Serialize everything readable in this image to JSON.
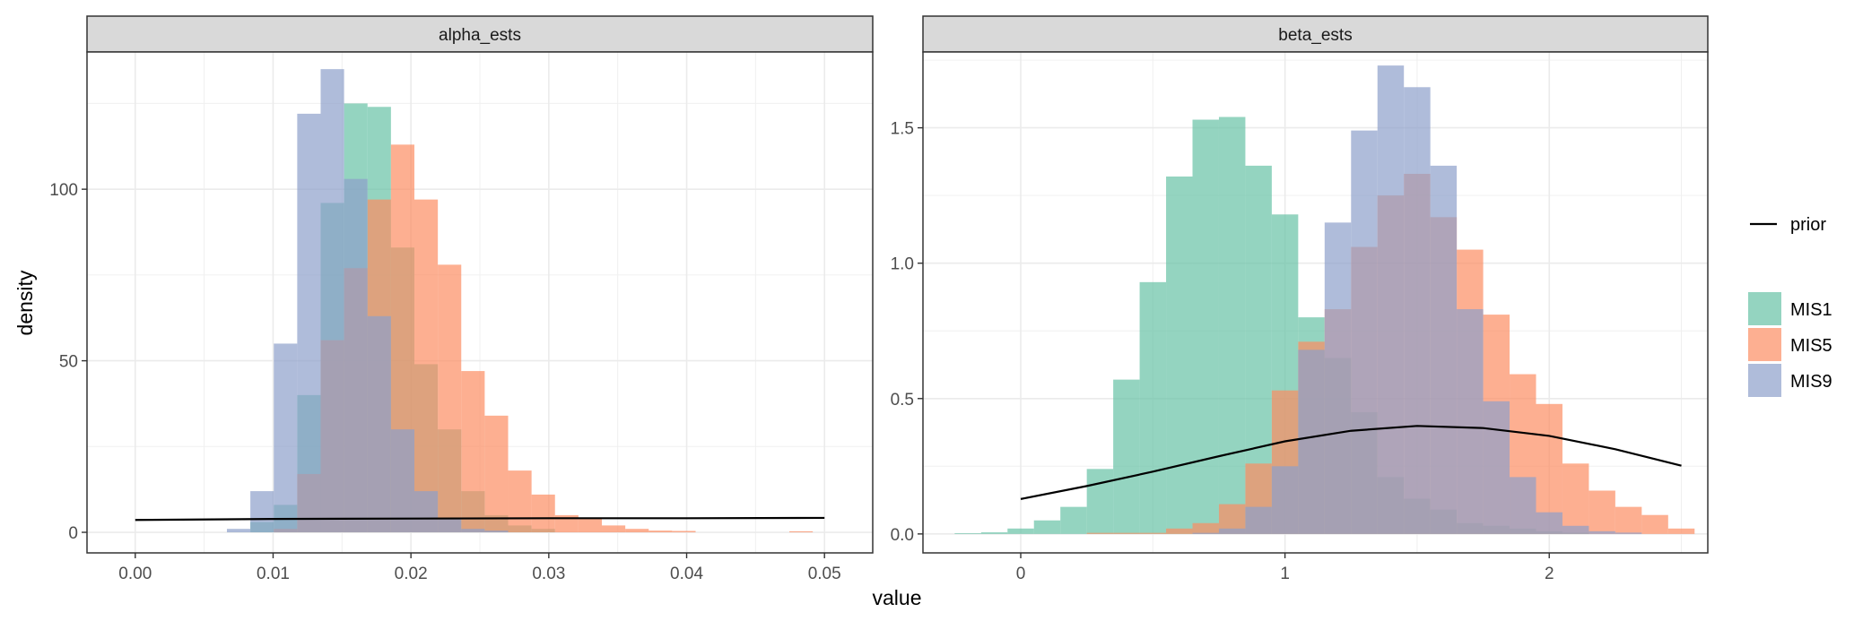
{
  "chart_data": {
    "type": "histogram",
    "xlabel": "value",
    "ylabel": "density",
    "legend": {
      "position": "right",
      "line_label": "prior",
      "fill_series": [
        "MIS1",
        "MIS5",
        "MIS9"
      ]
    },
    "colors": {
      "MIS1": "#66c2a5",
      "MIS5": "#fc8d62",
      "MIS9": "#8da0cb",
      "prior": "#000000"
    },
    "panels": [
      {
        "name": "alpha_ests",
        "xlim": [
          -0.0035,
          0.0535
        ],
        "ylim": [
          -6,
          140
        ],
        "xticks": [
          0.0,
          0.01,
          0.02,
          0.03,
          0.04,
          0.05
        ],
        "xtick_labels": [
          "0.00",
          "0.01",
          "0.02",
          "0.03",
          "0.04",
          "0.05"
        ],
        "yticks": [
          0,
          50,
          100
        ],
        "ytick_labels": [
          "0",
          "50",
          "100"
        ],
        "bin_width": 0.0017,
        "series": [
          {
            "name": "MIS1",
            "bins": [
              [
                0.0092,
                3
              ],
              [
                0.0109,
                8
              ],
              [
                0.0126,
                40
              ],
              [
                0.0143,
                96
              ],
              [
                0.016,
                125
              ],
              [
                0.0177,
                124
              ],
              [
                0.0194,
                83
              ],
              [
                0.0211,
                49
              ],
              [
                0.0228,
                30
              ],
              [
                0.0245,
                12
              ],
              [
                0.0262,
                5
              ],
              [
                0.0279,
                2
              ],
              [
                0.0296,
                1
              ]
            ]
          },
          {
            "name": "MIS5",
            "bins": [
              [
                0.0109,
                1
              ],
              [
                0.0126,
                17
              ],
              [
                0.0143,
                56
              ],
              [
                0.016,
                77
              ],
              [
                0.0177,
                97
              ],
              [
                0.0194,
                113
              ],
              [
                0.0211,
                97
              ],
              [
                0.0228,
                78
              ],
              [
                0.0245,
                47
              ],
              [
                0.0262,
                34
              ],
              [
                0.0279,
                18
              ],
              [
                0.0296,
                11
              ],
              [
                0.0313,
                5
              ],
              [
                0.033,
                4
              ],
              [
                0.0347,
                2
              ],
              [
                0.0364,
                1
              ],
              [
                0.0381,
                0.5
              ],
              [
                0.0398,
                0.4
              ],
              [
                0.0483,
                0.3
              ]
            ]
          },
          {
            "name": "MIS9",
            "bins": [
              [
                0.0075,
                1
              ],
              [
                0.0092,
                12
              ],
              [
                0.0109,
                55
              ],
              [
                0.0126,
                122
              ],
              [
                0.0143,
                135
              ],
              [
                0.016,
                103
              ],
              [
                0.0177,
                63
              ],
              [
                0.0194,
                30
              ],
              [
                0.0211,
                12
              ],
              [
                0.0228,
                4
              ],
              [
                0.0245,
                1
              ],
              [
                0.0262,
                0.5
              ]
            ]
          }
        ],
        "prior": {
          "x": [
            0.0,
            0.01,
            0.02,
            0.03,
            0.04,
            0.05
          ],
          "y": [
            3.6,
            3.9,
            4.0,
            4.1,
            4.1,
            4.2
          ]
        }
      },
      {
        "name": "beta_ests",
        "xlim": [
          -0.37,
          2.6
        ],
        "ylim": [
          -0.07,
          1.78
        ],
        "xticks": [
          0,
          1,
          2
        ],
        "xtick_labels": [
          "0",
          "1",
          "2"
        ],
        "yticks": [
          0.0,
          0.5,
          1.0,
          1.5
        ],
        "ytick_labels": [
          "0.0",
          "0.5",
          "1.0",
          "1.5"
        ],
        "bin_width": 0.1,
        "series": [
          {
            "name": "MIS1",
            "bins": [
              [
                -0.2,
                0.003
              ],
              [
                -0.1,
                0.006
              ],
              [
                0.0,
                0.02
              ],
              [
                0.1,
                0.05
              ],
              [
                0.2,
                0.1
              ],
              [
                0.3,
                0.24
              ],
              [
                0.4,
                0.57
              ],
              [
                0.5,
                0.93
              ],
              [
                0.6,
                1.32
              ],
              [
                0.7,
                1.53
              ],
              [
                0.8,
                1.54
              ],
              [
                0.9,
                1.36
              ],
              [
                1.0,
                1.18
              ],
              [
                1.1,
                0.8
              ],
              [
                1.2,
                0.65
              ],
              [
                1.3,
                0.45
              ],
              [
                1.4,
                0.21
              ],
              [
                1.5,
                0.13
              ],
              [
                1.6,
                0.09
              ],
              [
                1.7,
                0.04
              ],
              [
                1.8,
                0.03
              ],
              [
                1.9,
                0.02
              ],
              [
                2.0,
                0.01
              ],
              [
                2.1,
                0.005
              ]
            ]
          },
          {
            "name": "MIS5",
            "bins": [
              [
                0.3,
                0.004
              ],
              [
                0.4,
                0.004
              ],
              [
                0.5,
                0.004
              ],
              [
                0.6,
                0.02
              ],
              [
                0.7,
                0.04
              ],
              [
                0.8,
                0.11
              ],
              [
                0.9,
                0.26
              ],
              [
                1.0,
                0.53
              ],
              [
                1.1,
                0.71
              ],
              [
                1.2,
                0.83
              ],
              [
                1.3,
                1.06
              ],
              [
                1.4,
                1.25
              ],
              [
                1.5,
                1.33
              ],
              [
                1.6,
                1.17
              ],
              [
                1.7,
                1.05
              ],
              [
                1.8,
                0.81
              ],
              [
                1.9,
                0.59
              ],
              [
                2.0,
                0.48
              ],
              [
                2.1,
                0.26
              ],
              [
                2.2,
                0.16
              ],
              [
                2.3,
                0.1
              ],
              [
                2.4,
                0.07
              ],
              [
                2.5,
                0.02
              ]
            ]
          },
          {
            "name": "MIS9",
            "bins": [
              [
                0.7,
                0.004
              ],
              [
                0.8,
                0.02
              ],
              [
                0.9,
                0.1
              ],
              [
                1.0,
                0.25
              ],
              [
                1.1,
                0.68
              ],
              [
                1.2,
                1.15
              ],
              [
                1.3,
                1.49
              ],
              [
                1.4,
                1.73
              ],
              [
                1.5,
                1.65
              ],
              [
                1.6,
                1.36
              ],
              [
                1.7,
                0.83
              ],
              [
                1.8,
                0.49
              ],
              [
                1.9,
                0.21
              ],
              [
                2.0,
                0.08
              ],
              [
                2.1,
                0.03
              ],
              [
                2.2,
                0.01
              ],
              [
                2.3,
                0.005
              ]
            ]
          }
        ],
        "prior": {
          "x": [
            0.0,
            0.25,
            0.5,
            0.75,
            1.0,
            1.25,
            1.5,
            1.75,
            2.0,
            2.25,
            2.5
          ],
          "y": [
            0.129,
            0.177,
            0.23,
            0.287,
            0.342,
            0.381,
            0.399,
            0.391,
            0.362,
            0.313,
            0.252
          ]
        }
      }
    ]
  }
}
